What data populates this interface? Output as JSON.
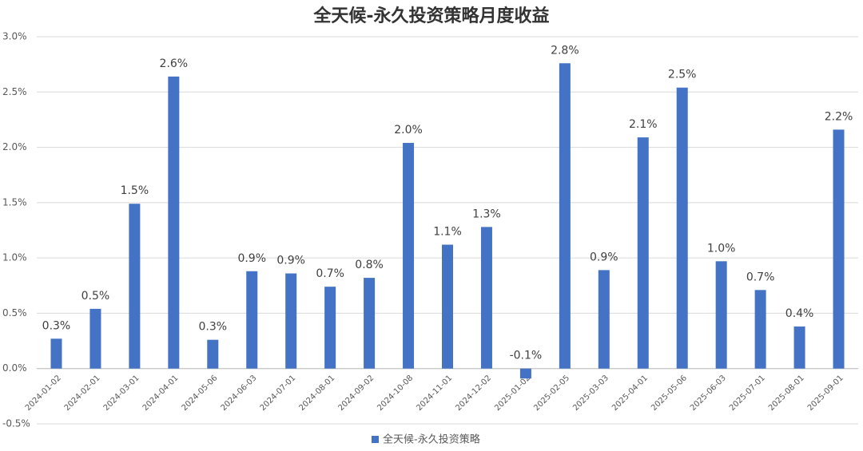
{
  "chart_data": {
    "type": "bar",
    "title": "全天候-永久投资策略月度收益",
    "categories": [
      "2024-01-02",
      "2024-02-01",
      "2024-03-01",
      "2024-04-01",
      "2024-05-06",
      "2024-06-03",
      "2024-07-01",
      "2024-08-01",
      "2024-09-02",
      "2024-10-08",
      "2024-11-01",
      "2024-12-02",
      "2025-01-02",
      "2025-02-05",
      "2025-03-03",
      "2025-04-01",
      "2025-05-06",
      "2025-06-03",
      "2025-07-01",
      "2025-08-01",
      "2025-09-01"
    ],
    "series": [
      {
        "name": "全天候-永久投资策略",
        "color": "#4472c4",
        "values": [
          0.27,
          0.54,
          1.49,
          2.64,
          0.26,
          0.88,
          0.86,
          0.74,
          0.82,
          2.04,
          1.12,
          1.28,
          -0.09,
          2.76,
          0.89,
          2.09,
          2.54,
          0.97,
          0.71,
          0.38,
          2.16
        ],
        "value_labels": [
          "0.3%",
          "0.5%",
          "1.5%",
          "2.6%",
          "0.3%",
          "0.9%",
          "0.9%",
          "0.7%",
          "0.8%",
          "2.0%",
          "1.1%",
          "1.3%",
          "-0.1%",
          "2.8%",
          "0.9%",
          "2.1%",
          "2.5%",
          "1.0%",
          "0.7%",
          "0.4%",
          "2.2%"
        ]
      }
    ],
    "ylim": [
      -0.5,
      3.0
    ],
    "yticks": [
      {
        "value": -0.5,
        "label": "-0.5%"
      },
      {
        "value": 0,
        "label": "0.0%"
      },
      {
        "value": 0.5,
        "label": "0.5%"
      },
      {
        "value": 1.0,
        "label": "1.0%"
      },
      {
        "value": 1.5,
        "label": "1.5%"
      },
      {
        "value": 2.0,
        "label": "2.0%"
      },
      {
        "value": 2.5,
        "label": "2.5%"
      },
      {
        "value": 3.0,
        "label": "3.0%"
      }
    ],
    "grid": true,
    "legend": "bottom"
  }
}
